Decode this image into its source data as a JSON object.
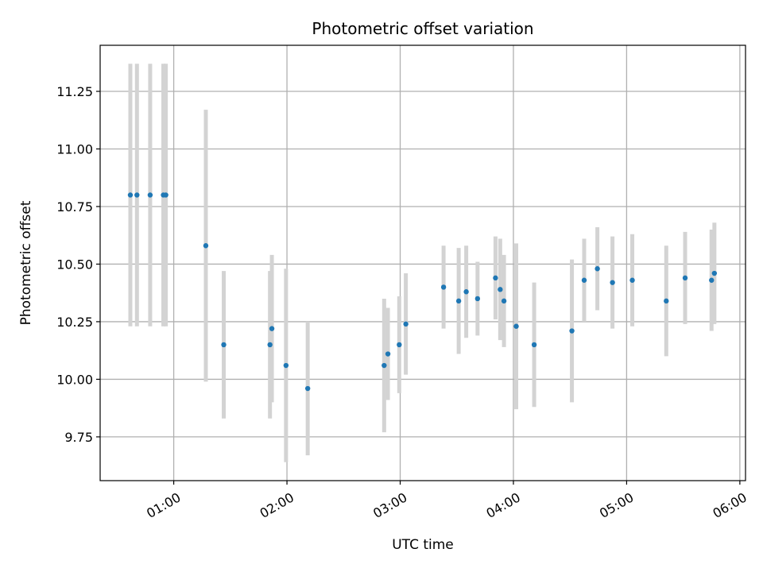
{
  "chart_data": {
    "type": "scatter",
    "title": "Photometric offset variation",
    "xlabel": "UTC time",
    "ylabel": "Photometric offset",
    "grid": true,
    "xlim_minutes": [
      21,
      363
    ],
    "ylim": [
      9.56,
      11.45
    ],
    "x_ticks": [
      {
        "minutes": 60,
        "label": "01:00"
      },
      {
        "minutes": 120,
        "label": "02:00"
      },
      {
        "minutes": 180,
        "label": "03:00"
      },
      {
        "minutes": 240,
        "label": "04:00"
      },
      {
        "minutes": 300,
        "label": "05:00"
      },
      {
        "minutes": 360,
        "label": "06:00"
      }
    ],
    "y_ticks": [
      {
        "value": 9.75,
        "label": "9.75"
      },
      {
        "value": 10.0,
        "label": "10.00"
      },
      {
        "value": 10.25,
        "label": "10.25"
      },
      {
        "value": 10.5,
        "label": "10.50"
      },
      {
        "value": 10.75,
        "label": "10.75"
      },
      {
        "value": 11.0,
        "label": "11.00"
      },
      {
        "value": 11.25,
        "label": "11.25"
      }
    ],
    "colors": {
      "point": "#1f77b4",
      "errorbar": "#d3d3d3",
      "grid": "#b0b0b0",
      "axis": "#000000"
    },
    "series": [
      {
        "name": "offset",
        "points": [
          {
            "x": 37.0,
            "y": 10.8,
            "err": 0.57
          },
          {
            "x": 40.5,
            "y": 10.8,
            "err": 0.57
          },
          {
            "x": 47.5,
            "y": 10.8,
            "err": 0.57
          },
          {
            "x": 54.5,
            "y": 10.8,
            "err": 0.57
          },
          {
            "x": 55.8,
            "y": 10.8,
            "err": 0.57
          },
          {
            "x": 77.0,
            "y": 10.58,
            "err": 0.59
          },
          {
            "x": 86.5,
            "y": 10.15,
            "err": 0.32
          },
          {
            "x": 111.0,
            "y": 10.15,
            "err": 0.32
          },
          {
            "x": 112.0,
            "y": 10.22,
            "err": 0.32
          },
          {
            "x": 119.5,
            "y": 10.06,
            "err": 0.42
          },
          {
            "x": 131.0,
            "y": 9.96,
            "err": 0.29
          },
          {
            "x": 171.5,
            "y": 10.06,
            "err": 0.29
          },
          {
            "x": 173.5,
            "y": 10.11,
            "err": 0.2
          },
          {
            "x": 179.5,
            "y": 10.15,
            "err": 0.21
          },
          {
            "x": 183.0,
            "y": 10.24,
            "err": 0.22
          },
          {
            "x": 203.0,
            "y": 10.4,
            "err": 0.18
          },
          {
            "x": 211.0,
            "y": 10.34,
            "err": 0.23
          },
          {
            "x": 215.0,
            "y": 10.38,
            "err": 0.2
          },
          {
            "x": 221.0,
            "y": 10.35,
            "err": 0.16
          },
          {
            "x": 230.5,
            "y": 10.44,
            "err": 0.18
          },
          {
            "x": 233.0,
            "y": 10.39,
            "err": 0.22
          },
          {
            "x": 235.0,
            "y": 10.34,
            "err": 0.2
          },
          {
            "x": 241.5,
            "y": 10.23,
            "err": 0.36
          },
          {
            "x": 251.0,
            "y": 10.15,
            "err": 0.27
          },
          {
            "x": 271.0,
            "y": 10.21,
            "err": 0.31
          },
          {
            "x": 277.5,
            "y": 10.43,
            "err": 0.18
          },
          {
            "x": 284.5,
            "y": 10.48,
            "err": 0.18
          },
          {
            "x": 292.5,
            "y": 10.42,
            "err": 0.2
          },
          {
            "x": 303.0,
            "y": 10.43,
            "err": 0.2
          },
          {
            "x": 321.0,
            "y": 10.34,
            "err": 0.24
          },
          {
            "x": 331.0,
            "y": 10.44,
            "err": 0.2
          },
          {
            "x": 345.0,
            "y": 10.43,
            "err": 0.22
          },
          {
            "x": 346.5,
            "y": 10.46,
            "err": 0.22
          }
        ]
      }
    ]
  }
}
